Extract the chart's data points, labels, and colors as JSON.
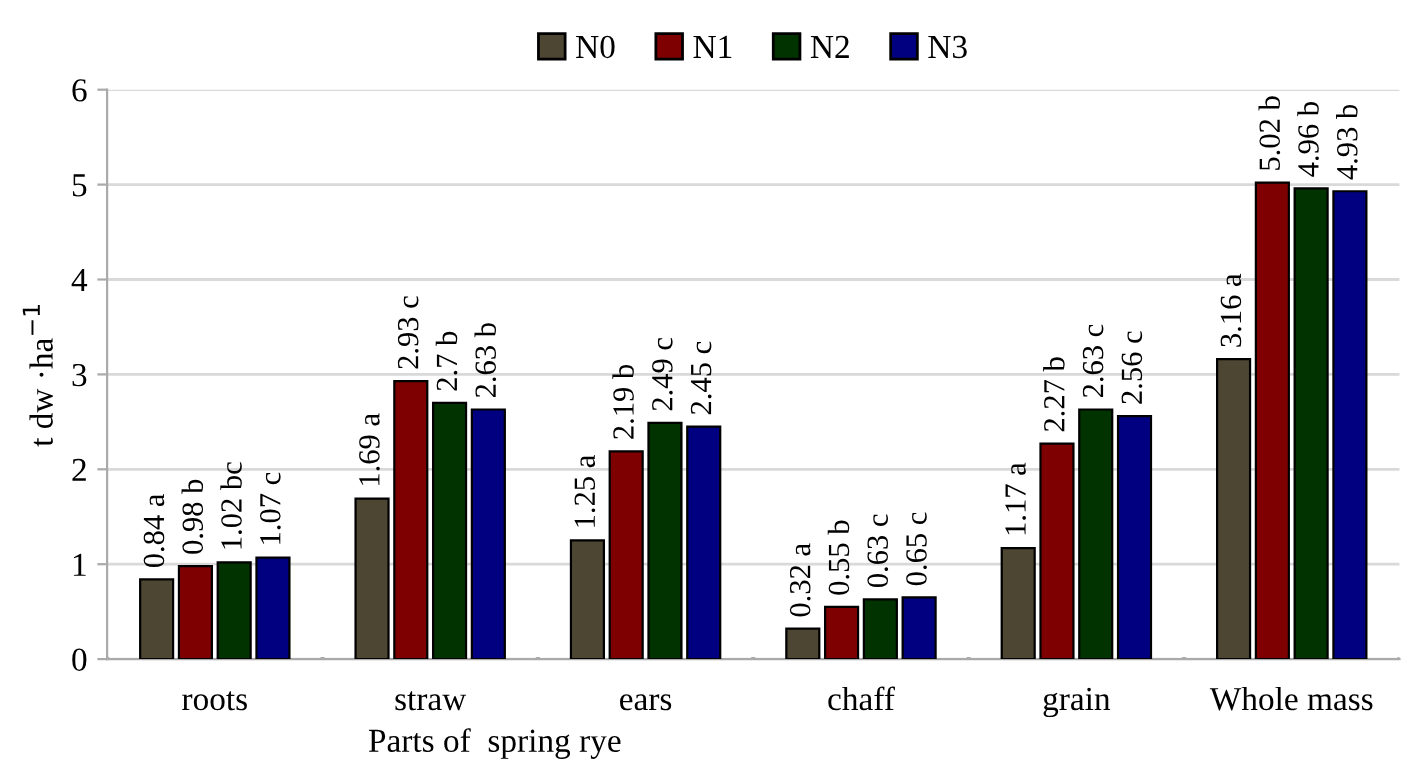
{
  "chart_data": {
    "type": "bar",
    "xlabel": "Parts of  spring rye",
    "ylabel": "t dw ·ha$^{−1}$",
    "categories": [
      "roots",
      "straw",
      "ears",
      "chaff",
      "grain",
      "Whole mass"
    ],
    "series": [
      {
        "name": "N0",
        "color": "#4d4633",
        "values": [
          0.84,
          1.69,
          1.25,
          0.32,
          1.17,
          3.16
        ],
        "value_labels": [
          "0.84 a",
          "1.69 a",
          "1.25 a",
          "0.32 a",
          "1.17 a",
          "3.16 a"
        ]
      },
      {
        "name": "N1",
        "color": "#7f0000",
        "values": [
          0.98,
          2.93,
          2.19,
          0.55,
          2.27,
          5.02
        ],
        "value_labels": [
          "0.98 b",
          "2.93 c",
          "2.19 b",
          "0.55 b",
          "2.27 b",
          "5.02 b"
        ]
      },
      {
        "name": "N2",
        "color": "#003300",
        "values": [
          1.02,
          2.7,
          2.49,
          0.63,
          2.63,
          4.96
        ],
        "value_labels": [
          "1.02 bc",
          "2.7 b",
          "2.49 c",
          "0.63 c",
          "2.63 c",
          "4.96 b"
        ]
      },
      {
        "name": "N3",
        "color": "#000080",
        "values": [
          1.07,
          2.63,
          2.45,
          0.65,
          2.56,
          4.93
        ],
        "value_labels": [
          "1.07 c",
          "2.63 b",
          "2.45 c",
          "0.65 c",
          "2.56 c",
          "4.93 b"
        ]
      }
    ],
    "ylim": [
      0,
      6
    ],
    "yticks": [
      0,
      1,
      2,
      3,
      4,
      5,
      6
    ],
    "grid": "y",
    "legend": "top"
  }
}
